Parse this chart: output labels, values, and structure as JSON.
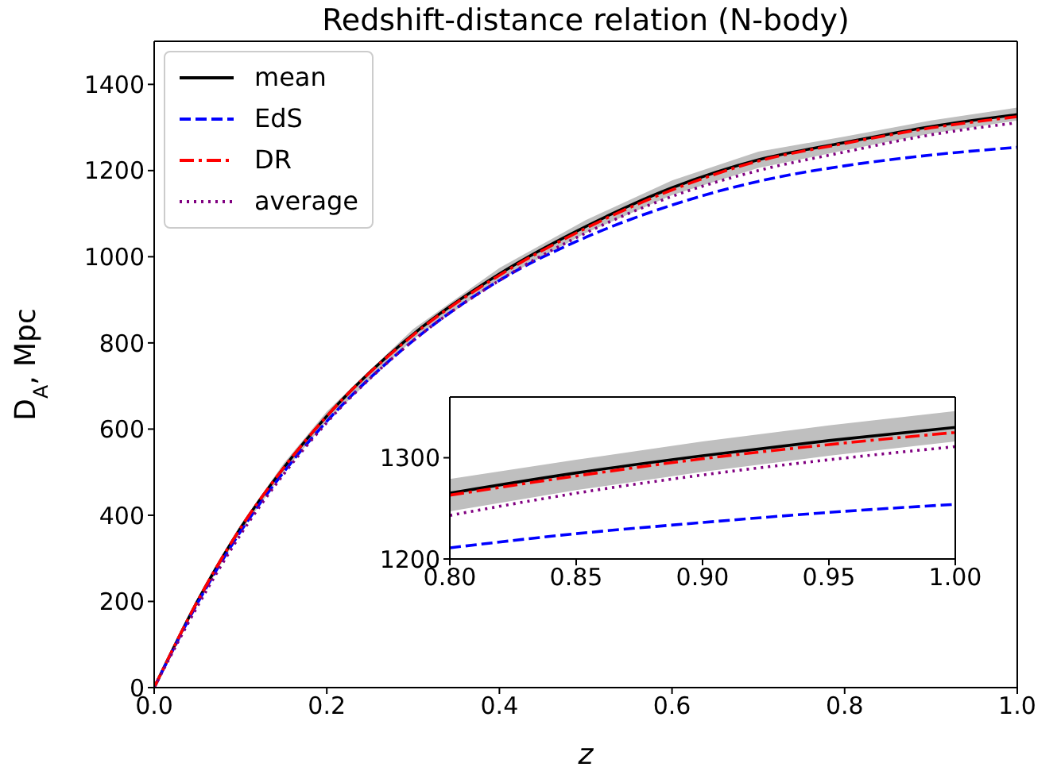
{
  "chart_data": [
    {
      "type": "line",
      "title": "Redshift-distance relation (N-body)",
      "xlabel": "z",
      "ylabel": "D$_{A}$, Mpc",
      "xlim": [
        0,
        1
      ],
      "ylim": [
        0,
        1500
      ],
      "xticks": [
        {
          "value": 0,
          "label": "0.0"
        },
        {
          "value": 0.2,
          "label": "0.2"
        },
        {
          "value": 0.4,
          "label": "0.4"
        },
        {
          "value": 0.6,
          "label": "0.6"
        },
        {
          "value": 0.8,
          "label": "0.8"
        },
        {
          "value": 1,
          "label": "1.0"
        }
      ],
      "yticks": [
        0,
        200,
        400,
        600,
        800,
        1000,
        1200,
        1400
      ],
      "legend": "top left",
      "series": [
        {
          "name": "mean",
          "color": "#000000",
          "line_style": "solid",
          "x": [
            0,
            0.05,
            0.1,
            0.15,
            0.2,
            0.3,
            0.4,
            0.5,
            0.6,
            0.7,
            0.8,
            0.9,
            1.0
          ],
          "values": [
            0,
            200,
            370,
            510,
            630,
            820,
            960,
            1070,
            1160,
            1225,
            1265,
            1302,
            1330
          ],
          "lower": [
            0,
            194,
            362,
            500,
            619,
            808,
            946,
            1055,
            1143,
            1206,
            1247,
            1286,
            1316
          ],
          "upper": [
            0,
            206,
            378,
            520,
            641,
            832,
            974,
            1085,
            1177,
            1244,
            1279,
            1316,
            1346
          ]
        },
        {
          "name": "EdS",
          "color": "#0000ff",
          "line_style": "dashed",
          "x": [
            0,
            0.05,
            0.1,
            0.15,
            0.2,
            0.3,
            0.4,
            0.5,
            0.6,
            0.7,
            0.8,
            0.9,
            1.0
          ],
          "values": [
            0,
            195,
            362,
            500,
            618,
            805,
            945,
            1045,
            1120,
            1175,
            1211,
            1236,
            1254
          ]
        },
        {
          "name": "DR",
          "color": "#ff0000",
          "line_style": "dashdot",
          "x": [
            0,
            0.05,
            0.1,
            0.15,
            0.2,
            0.3,
            0.4,
            0.5,
            0.6,
            0.7,
            0.8,
            0.9,
            1.0
          ],
          "values": [
            0,
            200,
            370,
            510,
            630,
            818,
            957,
            1066,
            1155,
            1222,
            1263,
            1299,
            1325
          ]
        },
        {
          "name": "average",
          "color": "#800080",
          "line_style": "dotted",
          "x": [
            0,
            0.05,
            0.1,
            0.15,
            0.2,
            0.3,
            0.4,
            0.5,
            0.6,
            0.7,
            0.8,
            0.9,
            1.0
          ],
          "values": [
            0,
            188,
            355,
            495,
            615,
            805,
            945,
            1055,
            1140,
            1200,
            1243,
            1283,
            1311
          ]
        }
      ]
    },
    {
      "type": "line",
      "xlim": [
        0.8,
        1
      ],
      "ylim": [
        1200,
        1360
      ],
      "xticks": [
        {
          "value": 0.8,
          "label": "0.80"
        },
        {
          "value": 0.85,
          "label": "0.85"
        },
        {
          "value": 0.9,
          "label": "0.90"
        },
        {
          "value": 0.95,
          "label": "0.95"
        },
        {
          "value": 1,
          "label": "1.00"
        }
      ],
      "yticks": [
        1200,
        1300
      ],
      "legend": false,
      "series": [
        {
          "color": "#000000",
          "line_style": "solid",
          "x": [
            0.8,
            0.85,
            0.9,
            0.95,
            1.0
          ],
          "values": [
            1265,
            1285,
            1302,
            1317,
            1330
          ],
          "lower": [
            1247,
            1268,
            1286,
            1302,
            1316
          ],
          "upper": [
            1279,
            1298,
            1316,
            1332,
            1346
          ]
        },
        {
          "color": "#0000ff",
          "line_style": "dashed",
          "x": [
            0.8,
            0.85,
            0.9,
            0.95,
            1.0
          ],
          "values": [
            1211,
            1225,
            1236,
            1246,
            1254
          ]
        },
        {
          "color": "#ff0000",
          "line_style": "dashdot",
          "x": [
            0.8,
            0.85,
            0.9,
            0.95,
            1.0
          ],
          "values": [
            1263,
            1282,
            1299,
            1313,
            1325
          ]
        },
        {
          "color": "#800080",
          "line_style": "dotted",
          "x": [
            0.8,
            0.85,
            0.9,
            0.95,
            1.0
          ],
          "values": [
            1243,
            1265,
            1283,
            1298,
            1311
          ]
        }
      ]
    }
  ]
}
